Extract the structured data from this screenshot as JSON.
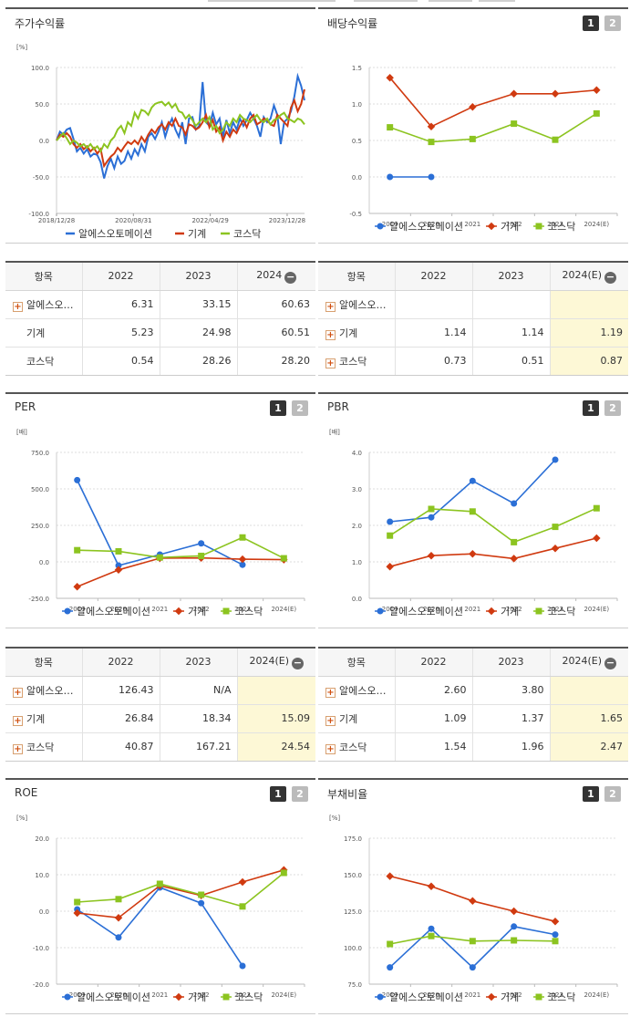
{
  "colors": {
    "company": "#2b6fd6",
    "industry": "#d03a10",
    "kosdaq": "#8cc420",
    "grid": "#dddddd",
    "axis": "#999999"
  },
  "legend": [
    "알에스오토메이션",
    "기계",
    "코스닥"
  ],
  "pager": [
    "1",
    "2"
  ],
  "chart_data": [
    {
      "id": "stock-return",
      "type": "line",
      "title": "주가수익률",
      "unit": "[%]",
      "ylim": [
        -100,
        100
      ],
      "yticks": [
        "100.0",
        "50.0",
        "0.0",
        "-50.0",
        "-100.0"
      ],
      "xticks": [
        "2018/12/28",
        "2020/08/31",
        "2022/04/29",
        "2023/12/28"
      ],
      "series": [
        {
          "name": "알에스오토메이션",
          "values": [
            0,
            12,
            8,
            15,
            17,
            2,
            -15,
            -10,
            -18,
            -12,
            -22,
            -18,
            -20,
            -30,
            -52,
            -35,
            -25,
            -38,
            -22,
            -32,
            -28,
            -15,
            -25,
            -12,
            -20,
            -5,
            -15,
            5,
            10,
            2,
            12,
            25,
            5,
            20,
            30,
            15,
            5,
            25,
            -5,
            30,
            32,
            15,
            20,
            80,
            25,
            20,
            38,
            22,
            30,
            5,
            28,
            10,
            25,
            15,
            30,
            20,
            28,
            38,
            30,
            20,
            5,
            32,
            25,
            30,
            48,
            35,
            -5,
            25,
            30,
            40,
            60,
            88,
            75,
            55
          ]
        },
        {
          "name": "기계",
          "values": [
            0,
            8,
            5,
            10,
            5,
            -5,
            -10,
            -5,
            -12,
            -8,
            -15,
            -10,
            -18,
            -12,
            -35,
            -28,
            -22,
            -18,
            -10,
            -15,
            -8,
            -2,
            -5,
            0,
            -5,
            5,
            -2,
            8,
            15,
            10,
            18,
            22,
            15,
            25,
            20,
            30,
            20,
            18,
            8,
            22,
            20,
            15,
            18,
            25,
            35,
            18,
            28,
            12,
            18,
            0,
            12,
            5,
            15,
            10,
            20,
            28,
            18,
            30,
            35,
            22,
            25,
            30,
            28,
            22,
            20,
            35,
            30,
            25,
            20,
            45,
            55,
            40,
            50,
            70
          ]
        },
        {
          "name": "코스닥",
          "values": [
            0,
            5,
            10,
            3,
            -5,
            0,
            -3,
            -8,
            -5,
            -10,
            -5,
            -12,
            -8,
            -15,
            -5,
            -10,
            0,
            5,
            15,
            20,
            10,
            25,
            20,
            38,
            30,
            42,
            40,
            35,
            45,
            50,
            52,
            53,
            48,
            52,
            45,
            50,
            40,
            38,
            30,
            35,
            28,
            20,
            25,
            30,
            25,
            32,
            15,
            20,
            10,
            15,
            25,
            20,
            30,
            25,
            35,
            30,
            28,
            25,
            30,
            35,
            28,
            25,
            30,
            22,
            28,
            30,
            35,
            38,
            30,
            28,
            25,
            30,
            28,
            22
          ]
        }
      ]
    },
    {
      "id": "dividend-yield",
      "type": "line",
      "title": "배당수익률",
      "unit": "",
      "ylim": [
        -0.5,
        1.5
      ],
      "yticks": [
        "1.5",
        "1.0",
        "0.5",
        "0.0",
        "-0.5"
      ],
      "categories": [
        "2019",
        "2020",
        "2021",
        "2022",
        "2023",
        "2024(E)"
      ],
      "series": [
        {
          "name": "알에스오토메이션",
          "values": [
            0.0,
            0.0,
            null,
            null,
            null,
            null
          ]
        },
        {
          "name": "기계",
          "values": [
            1.36,
            0.69,
            0.96,
            1.14,
            1.14,
            1.19
          ]
        },
        {
          "name": "코스닥",
          "values": [
            0.68,
            0.48,
            0.52,
            0.73,
            0.51,
            0.87
          ]
        }
      ]
    },
    {
      "id": "per",
      "type": "line",
      "title": "PER",
      "unit": "[배]",
      "ylim": [
        -250,
        750
      ],
      "yticks": [
        "750.0",
        "500.0",
        "250.0",
        "0.0",
        "-250.0"
      ],
      "categories": [
        "2019",
        "2020",
        "2021",
        "2022",
        "2023",
        "2024(E)"
      ],
      "series": [
        {
          "name": "알에스오토메이션",
          "values": [
            560,
            -25,
            50,
            126.43,
            -20,
            null
          ]
        },
        {
          "name": "기계",
          "values": [
            -170,
            -55,
            25,
            26.84,
            18.34,
            15.09
          ]
        },
        {
          "name": "코스닥",
          "values": [
            80,
            72,
            30,
            40.87,
            167.21,
            24.54
          ]
        }
      ]
    },
    {
      "id": "pbr",
      "type": "line",
      "title": "PBR",
      "unit": "[배]",
      "ylim": [
        0,
        4
      ],
      "yticks": [
        "4.0",
        "3.0",
        "2.0",
        "1.0",
        "0.0"
      ],
      "categories": [
        "2019",
        "2020",
        "2021",
        "2022",
        "2023",
        "2024(E)"
      ],
      "series": [
        {
          "name": "알에스오토메이션",
          "values": [
            2.1,
            2.22,
            3.22,
            2.6,
            3.8,
            null
          ]
        },
        {
          "name": "기계",
          "values": [
            0.87,
            1.17,
            1.22,
            1.09,
            1.37,
            1.65
          ]
        },
        {
          "name": "코스닥",
          "values": [
            1.72,
            2.45,
            2.38,
            1.54,
            1.96,
            2.47
          ]
        }
      ]
    },
    {
      "id": "roe",
      "type": "line",
      "title": "ROE",
      "unit": "[%]",
      "ylim": [
        -20,
        20
      ],
      "yticks": [
        "20.0",
        "10.0",
        "0.0",
        "-10.0",
        "-20.0"
      ],
      "categories": [
        "2019",
        "2020",
        "2021",
        "2022",
        "2023",
        "2024(E)"
      ],
      "series": [
        {
          "name": "알에스오토메이션",
          "values": [
            0.5,
            -7.2,
            6.5,
            2.2,
            -15.0,
            null
          ]
        },
        {
          "name": "기계",
          "values": [
            -0.5,
            -1.8,
            7.0,
            4.3,
            8.0,
            11.3
          ]
        },
        {
          "name": "코스닥",
          "values": [
            2.5,
            3.3,
            7.5,
            4.5,
            1.3,
            10.5
          ]
        }
      ]
    },
    {
      "id": "debt-ratio",
      "type": "line",
      "title": "부채비율",
      "unit": "[%]",
      "ylim": [
        75,
        175
      ],
      "yticks": [
        "175.0",
        "150.0",
        "125.0",
        "100.0",
        "75.0"
      ],
      "categories": [
        "2019",
        "2020",
        "2021",
        "2022",
        "2023",
        "2024(E)"
      ],
      "series": [
        {
          "name": "알에스오토메이션",
          "values": [
            86.5,
            113,
            86.5,
            114.5,
            109,
            null
          ]
        },
        {
          "name": "기계",
          "values": [
            149,
            142,
            132,
            125,
            118,
            null
          ]
        },
        {
          "name": "코스닥",
          "values": [
            102.5,
            108,
            104.5,
            105,
            104.5,
            null
          ]
        }
      ]
    }
  ],
  "tables": {
    "stock": {
      "headers": [
        "항목",
        "2022",
        "2023",
        "2024"
      ],
      "rows": [
        {
          "label": "알에스오…",
          "plus": true,
          "vals": [
            "6.31",
            "33.15",
            "60.63"
          ]
        },
        {
          "label": "기계",
          "plus": false,
          "vals": [
            "5.23",
            "24.98",
            "60.51"
          ]
        },
        {
          "label": "코스닥",
          "plus": false,
          "vals": [
            "0.54",
            "28.26",
            "28.20"
          ]
        }
      ]
    },
    "dividend": {
      "headers": [
        "항목",
        "2022",
        "2023",
        "2024(E)"
      ],
      "rows": [
        {
          "label": "알에스오…",
          "plus": true,
          "vals": [
            "",
            "",
            ""
          ]
        },
        {
          "label": "기계",
          "plus": true,
          "vals": [
            "1.14",
            "1.14",
            "1.19"
          ]
        },
        {
          "label": "코스닥",
          "plus": true,
          "vals": [
            "0.73",
            "0.51",
            "0.87"
          ]
        }
      ]
    },
    "per": {
      "headers": [
        "항목",
        "2022",
        "2023",
        "2024(E)"
      ],
      "rows": [
        {
          "label": "알에스오…",
          "plus": true,
          "vals": [
            "126.43",
            "N/A",
            ""
          ]
        },
        {
          "label": "기계",
          "plus": true,
          "vals": [
            "26.84",
            "18.34",
            "15.09"
          ]
        },
        {
          "label": "코스닥",
          "plus": true,
          "vals": [
            "40.87",
            "167.21",
            "24.54"
          ]
        }
      ]
    },
    "pbr": {
      "headers": [
        "항목",
        "2022",
        "2023",
        "2024(E)"
      ],
      "rows": [
        {
          "label": "알에스오…",
          "plus": true,
          "vals": [
            "2.60",
            "3.80",
            ""
          ]
        },
        {
          "label": "기계",
          "plus": true,
          "vals": [
            "1.09",
            "1.37",
            "1.65"
          ]
        },
        {
          "label": "코스닥",
          "plus": true,
          "vals": [
            "1.54",
            "1.96",
            "2.47"
          ]
        }
      ]
    }
  }
}
